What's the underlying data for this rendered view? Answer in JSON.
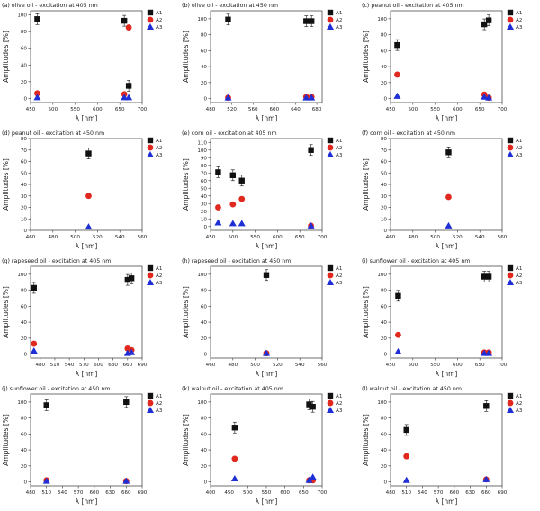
{
  "figure": {
    "ylabel": "Amplitudes [%]",
    "xlabel": "λ [nm]",
    "legend": [
      "A1",
      "A2",
      "A3"
    ],
    "colors": {
      "A1": "#111111",
      "A2": "#e0281e",
      "A3": "#1f2fd6"
    }
  },
  "chart_data": [
    {
      "type": "scatter",
      "title": "(a) olive oil - excitation at 405 nm",
      "xlabel": "λ [nm]",
      "ylabel": "Amplitudes [%]",
      "xlim": [
        450,
        700
      ],
      "ylim": [
        -5,
        105
      ],
      "xticks": [
        450,
        500,
        550,
        600,
        650,
        700
      ],
      "yticks": [
        0,
        20,
        40,
        60,
        80,
        100
      ],
      "legend_position": "top-right",
      "series": [
        {
          "name": "A1",
          "marker": "square",
          "x": [
            465,
            660,
            670
          ],
          "y": [
            95,
            93,
            15
          ]
        },
        {
          "name": "A2",
          "marker": "circle",
          "x": [
            465,
            660,
            670
          ],
          "y": [
            6,
            5,
            85
          ]
        },
        {
          "name": "A3",
          "marker": "triangle",
          "x": [
            465,
            660,
            670
          ],
          "y": [
            1,
            1,
            1
          ]
        }
      ]
    },
    {
      "type": "scatter",
      "title": "(b) olive oil - excitation at 450 nm",
      "xlabel": "λ [nm]",
      "ylabel": "Amplitudes [%]",
      "xlim": [
        480,
        690
      ],
      "ylim": [
        -5,
        110
      ],
      "xticks": [
        480,
        520,
        560,
        600,
        640,
        680
      ],
      "yticks": [
        0,
        20,
        40,
        60,
        80,
        100
      ],
      "legend_position": "top-right",
      "series": [
        {
          "name": "A1",
          "marker": "square",
          "x": [
            513,
            660,
            670
          ],
          "y": [
            99,
            97,
            97
          ]
        },
        {
          "name": "A2",
          "marker": "circle",
          "x": [
            513,
            660,
            670
          ],
          "y": [
            1,
            2,
            2
          ]
        },
        {
          "name": "A3",
          "marker": "triangle",
          "x": [
            513,
            660,
            670
          ],
          "y": [
            1,
            1,
            1
          ]
        }
      ]
    },
    {
      "type": "scatter",
      "title": "(c) peanut oil - excitation at 405 nm",
      "xlabel": "λ [nm]",
      "ylabel": "Amplitudes [%]",
      "xlim": [
        450,
        700
      ],
      "ylim": [
        -5,
        110
      ],
      "xticks": [
        450,
        500,
        550,
        600,
        650,
        700
      ],
      "yticks": [
        0,
        20,
        40,
        60,
        80,
        100
      ],
      "legend_position": "top-right",
      "series": [
        {
          "name": "A1",
          "marker": "square",
          "x": [
            465,
            660,
            670
          ],
          "y": [
            67,
            93,
            98
          ]
        },
        {
          "name": "A2",
          "marker": "circle",
          "x": [
            465,
            660,
            670
          ],
          "y": [
            30,
            5,
            1
          ]
        },
        {
          "name": "A3",
          "marker": "triangle",
          "x": [
            465,
            660,
            670
          ],
          "y": [
            3,
            2,
            1
          ]
        }
      ]
    },
    {
      "type": "scatter",
      "title": "(d) peanut oil - excitation at 450 nm",
      "xlabel": "λ [nm]",
      "ylabel": "Amplitudes [%]",
      "xlim": [
        460,
        560
      ],
      "ylim": [
        0,
        80
      ],
      "xticks": [
        460,
        480,
        500,
        520,
        540,
        560
      ],
      "yticks": [
        0,
        10,
        20,
        30,
        40,
        50,
        60,
        70,
        80
      ],
      "legend_position": "top-right",
      "series": [
        {
          "name": "A1",
          "marker": "square",
          "x": [
            512
          ],
          "y": [
            67
          ]
        },
        {
          "name": "A2",
          "marker": "circle",
          "x": [
            512
          ],
          "y": [
            30
          ]
        },
        {
          "name": "A3",
          "marker": "triangle",
          "x": [
            512
          ],
          "y": [
            3
          ]
        }
      ]
    },
    {
      "type": "scatter",
      "title": "(e) corn oil - excitation at 405 nm",
      "xlabel": "λ [nm]",
      "ylabel": "Amplitudes [%]",
      "xlim": [
        450,
        700
      ],
      "ylim": [
        -5,
        115
      ],
      "xticks": [
        450,
        500,
        550,
        600,
        650,
        700
      ],
      "yticks": [
        0,
        10,
        20,
        30,
        40,
        50,
        60,
        70,
        80,
        90,
        100,
        110
      ],
      "legend_position": "top-right",
      "series": [
        {
          "name": "A1",
          "marker": "square",
          "x": [
            467,
            500,
            520,
            675
          ],
          "y": [
            71,
            67,
            60,
            100
          ]
        },
        {
          "name": "A2",
          "marker": "circle",
          "x": [
            467,
            500,
            520,
            675
          ],
          "y": [
            25,
            29,
            36,
            1
          ]
        },
        {
          "name": "A3",
          "marker": "triangle",
          "x": [
            467,
            500,
            520,
            675
          ],
          "y": [
            5,
            4,
            4,
            1
          ]
        }
      ]
    },
    {
      "type": "scatter",
      "title": "(f) corn oil - excitation at 450 nm",
      "xlabel": "λ [nm]",
      "ylabel": "Amplitudes [%]",
      "xlim": [
        460,
        560
      ],
      "ylim": [
        0,
        80
      ],
      "xticks": [
        460,
        480,
        500,
        520,
        540,
        560
      ],
      "yticks": [
        0,
        10,
        20,
        30,
        40,
        50,
        60,
        70,
        80
      ],
      "legend_position": "top-right",
      "series": [
        {
          "name": "A1",
          "marker": "square",
          "x": [
            512
          ],
          "y": [
            68
          ]
        },
        {
          "name": "A2",
          "marker": "circle",
          "x": [
            512
          ],
          "y": [
            29
          ]
        },
        {
          "name": "A3",
          "marker": "triangle",
          "x": [
            512
          ],
          "y": [
            4
          ]
        }
      ]
    },
    {
      "type": "scatter",
      "title": "(g) rapeseed oil - excitation at 405 nm",
      "xlabel": "λ [nm]",
      "ylabel": "Amplitudes [%]",
      "xlim": [
        460,
        690
      ],
      "ylim": [
        -5,
        110
      ],
      "xticks": [
        480,
        510,
        540,
        570,
        600,
        630,
        660,
        690
      ],
      "yticks": [
        0,
        20,
        40,
        60,
        80,
        100
      ],
      "legend_position": "top-right",
      "series": [
        {
          "name": "A1",
          "marker": "square",
          "x": [
            467,
            660,
            668
          ],
          "y": [
            83,
            93,
            95
          ]
        },
        {
          "name": "A2",
          "marker": "circle",
          "x": [
            467,
            660,
            668
          ],
          "y": [
            13,
            7,
            5
          ]
        },
        {
          "name": "A3",
          "marker": "triangle",
          "x": [
            467,
            660,
            668
          ],
          "y": [
            4,
            1,
            2
          ]
        }
      ]
    },
    {
      "type": "scatter",
      "title": "(h) rapeseed oil - excitation at 450 nm",
      "xlabel": "λ [nm]",
      "ylabel": "Amplitudes [%]",
      "xlim": [
        460,
        560
      ],
      "ylim": [
        -5,
        110
      ],
      "xticks": [
        460,
        480,
        500,
        520,
        540,
        560
      ],
      "yticks": [
        0,
        20,
        40,
        60,
        80,
        100
      ],
      "legend_position": "top-right",
      "series": [
        {
          "name": "A1",
          "marker": "square",
          "x": [
            510
          ],
          "y": [
            99
          ]
        },
        {
          "name": "A2",
          "marker": "circle",
          "x": [
            510
          ],
          "y": [
            1
          ]
        },
        {
          "name": "A3",
          "marker": "triangle",
          "x": [
            510
          ],
          "y": [
            1
          ]
        }
      ]
    },
    {
      "type": "scatter",
      "title": "(i) sunflower oil - excitation at 405 nm",
      "xlabel": "λ [nm]",
      "ylabel": "Amplitudes [%]",
      "xlim": [
        450,
        700
      ],
      "ylim": [
        -5,
        110
      ],
      "xticks": [
        450,
        500,
        550,
        600,
        650,
        700
      ],
      "yticks": [
        0,
        20,
        40,
        60,
        80,
        100
      ],
      "legend_position": "top-right",
      "series": [
        {
          "name": "A1",
          "marker": "square",
          "x": [
            467,
            660,
            670
          ],
          "y": [
            73,
            97,
            97
          ]
        },
        {
          "name": "A2",
          "marker": "circle",
          "x": [
            467,
            660,
            670
          ],
          "y": [
            24,
            2,
            2
          ]
        },
        {
          "name": "A3",
          "marker": "triangle",
          "x": [
            467,
            660,
            670
          ],
          "y": [
            3,
            1,
            1
          ]
        }
      ]
    },
    {
      "type": "scatter",
      "title": "(j) sunflower oil - excitation at 450 nm",
      "xlabel": "λ [nm]",
      "ylabel": "Amplitudes [%]",
      "xlim": [
        480,
        690
      ],
      "ylim": [
        -5,
        110
      ],
      "xticks": [
        480,
        510,
        540,
        570,
        600,
        630,
        660,
        690
      ],
      "yticks": [
        0,
        20,
        40,
        60,
        80,
        100
      ],
      "legend_position": "top-right",
      "series": [
        {
          "name": "A1",
          "marker": "square",
          "x": [
            510,
            660
          ],
          "y": [
            96,
            100
          ]
        },
        {
          "name": "A2",
          "marker": "circle",
          "x": [
            510,
            660
          ],
          "y": [
            2,
            1
          ]
        },
        {
          "name": "A3",
          "marker": "triangle",
          "x": [
            510,
            660
          ],
          "y": [
            1,
            1
          ]
        }
      ]
    },
    {
      "type": "scatter",
      "title": "(k) walnut oil - excitation at 405 nm",
      "xlabel": "λ [nm]",
      "ylabel": "Amplitudes [%]",
      "xlim": [
        400,
        700
      ],
      "ylim": [
        -5,
        110
      ],
      "xticks": [
        400,
        450,
        500,
        550,
        600,
        650,
        700
      ],
      "yticks": [
        0,
        20,
        40,
        60,
        80,
        100
      ],
      "legend_position": "top-right",
      "series": [
        {
          "name": "A1",
          "marker": "square",
          "x": [
            465,
            665,
            675
          ],
          "y": [
            68,
            97,
            94
          ]
        },
        {
          "name": "A2",
          "marker": "circle",
          "x": [
            465,
            665,
            675
          ],
          "y": [
            29,
            2,
            2
          ]
        },
        {
          "name": "A3",
          "marker": "triangle",
          "x": [
            465,
            665,
            675
          ],
          "y": [
            4,
            2,
            6
          ]
        }
      ]
    },
    {
      "type": "scatter",
      "title": "(l) walnut oil - excitation at 450 nm",
      "xlabel": "λ [nm]",
      "ylabel": "Amplitudes [%]",
      "xlim": [
        480,
        690
      ],
      "ylim": [
        -5,
        110
      ],
      "xticks": [
        480,
        510,
        540,
        570,
        600,
        630,
        660,
        690
      ],
      "yticks": [
        0,
        20,
        40,
        60,
        80,
        100
      ],
      "legend_position": "top-right",
      "series": [
        {
          "name": "A1",
          "marker": "square",
          "x": [
            510,
            660
          ],
          "y": [
            65,
            95
          ]
        },
        {
          "name": "A2",
          "marker": "circle",
          "x": [
            510,
            660
          ],
          "y": [
            32,
            3
          ]
        },
        {
          "name": "A3",
          "marker": "triangle",
          "x": [
            510,
            660
          ],
          "y": [
            2,
            3
          ]
        }
      ]
    }
  ]
}
